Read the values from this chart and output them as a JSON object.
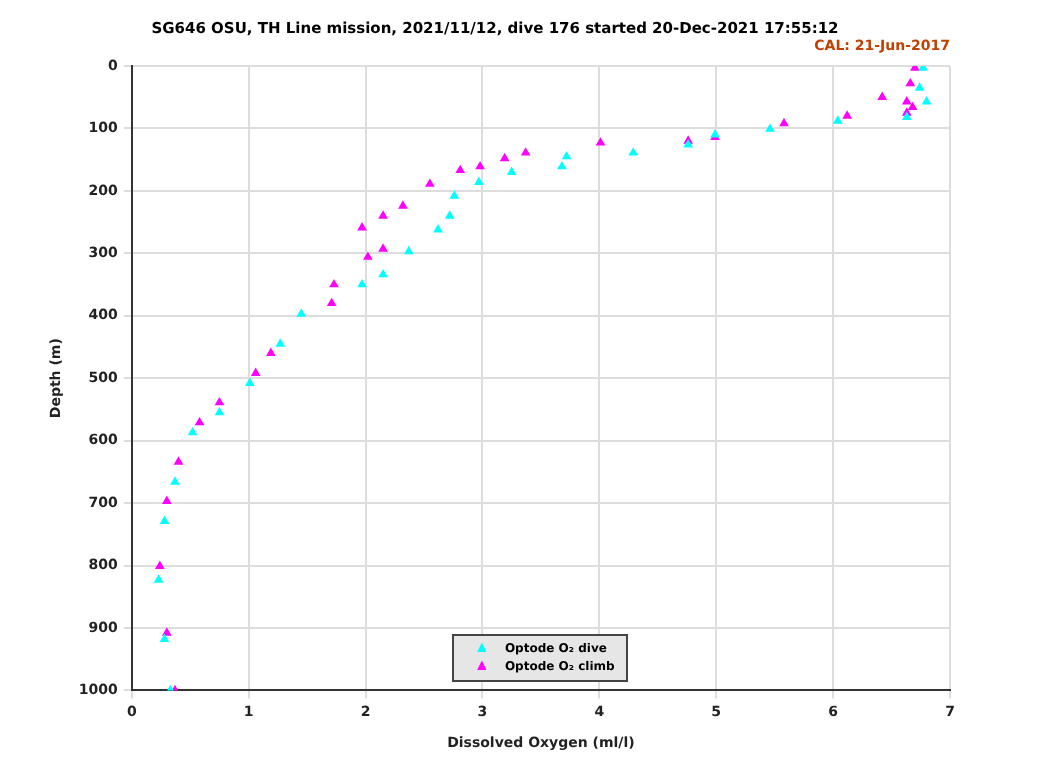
{
  "chart_data": {
    "type": "scatter",
    "title": "SG646 OSU, TH Line mission, 2021/11/12, dive 176 started 20-Dec-2021 17:55:12",
    "annotations": [
      "CAL: 21-Jun-2017"
    ],
    "xlabel": "Dissolved Oxygen (ml/l)",
    "ylabel": "Depth (m)",
    "xlim": [
      0,
      7
    ],
    "xticks": [
      0,
      1,
      2,
      3,
      4,
      5,
      6,
      7
    ],
    "ylim": [
      1000,
      0
    ],
    "yticks": [
      0,
      100,
      200,
      300,
      400,
      500,
      600,
      700,
      800,
      900,
      1000
    ],
    "grid": true,
    "legend": "bottom",
    "marker": "triangle",
    "series": [
      {
        "name": "Optode O₂ dive",
        "color": "#00ffff",
        "x": [
          6.77,
          6.74,
          6.8,
          6.63,
          6.04,
          5.46,
          4.99,
          4.76,
          4.29,
          3.72,
          3.68,
          3.25,
          2.97,
          2.76,
          2.72,
          2.62,
          2.37,
          2.15,
          1.97,
          1.45,
          1.27,
          1.01,
          0.75,
          0.52,
          0.37,
          0.28,
          0.23,
          0.28,
          0.33
        ],
        "values": [
          3,
          35,
          57,
          82,
          88,
          101,
          110,
          126,
          139,
          145,
          161,
          170,
          186,
          208,
          240,
          262,
          297,
          334,
          350,
          397,
          445,
          508,
          555,
          587,
          666,
          729,
          823,
          918,
          1000
        ]
      },
      {
        "name": "Optode O₂ climb",
        "color": "#ff00ff",
        "x": [
          6.7,
          6.66,
          6.42,
          6.63,
          6.68,
          6.63,
          6.12,
          5.58,
          4.99,
          4.76,
          4.01,
          3.37,
          3.19,
          2.98,
          2.81,
          2.55,
          2.32,
          2.15,
          1.97,
          2.15,
          2.02,
          1.73,
          1.71,
          1.19,
          1.06,
          0.75,
          0.58,
          0.4,
          0.3,
          0.24,
          0.3,
          0.37
        ],
        "values": [
          3,
          28,
          50,
          57,
          66,
          75,
          80,
          92,
          114,
          120,
          123,
          139,
          148,
          161,
          167,
          189,
          224,
          240,
          259,
          293,
          306,
          350,
          380,
          460,
          492,
          539,
          571,
          634,
          697,
          801,
          908,
          1000
        ]
      }
    ]
  }
}
